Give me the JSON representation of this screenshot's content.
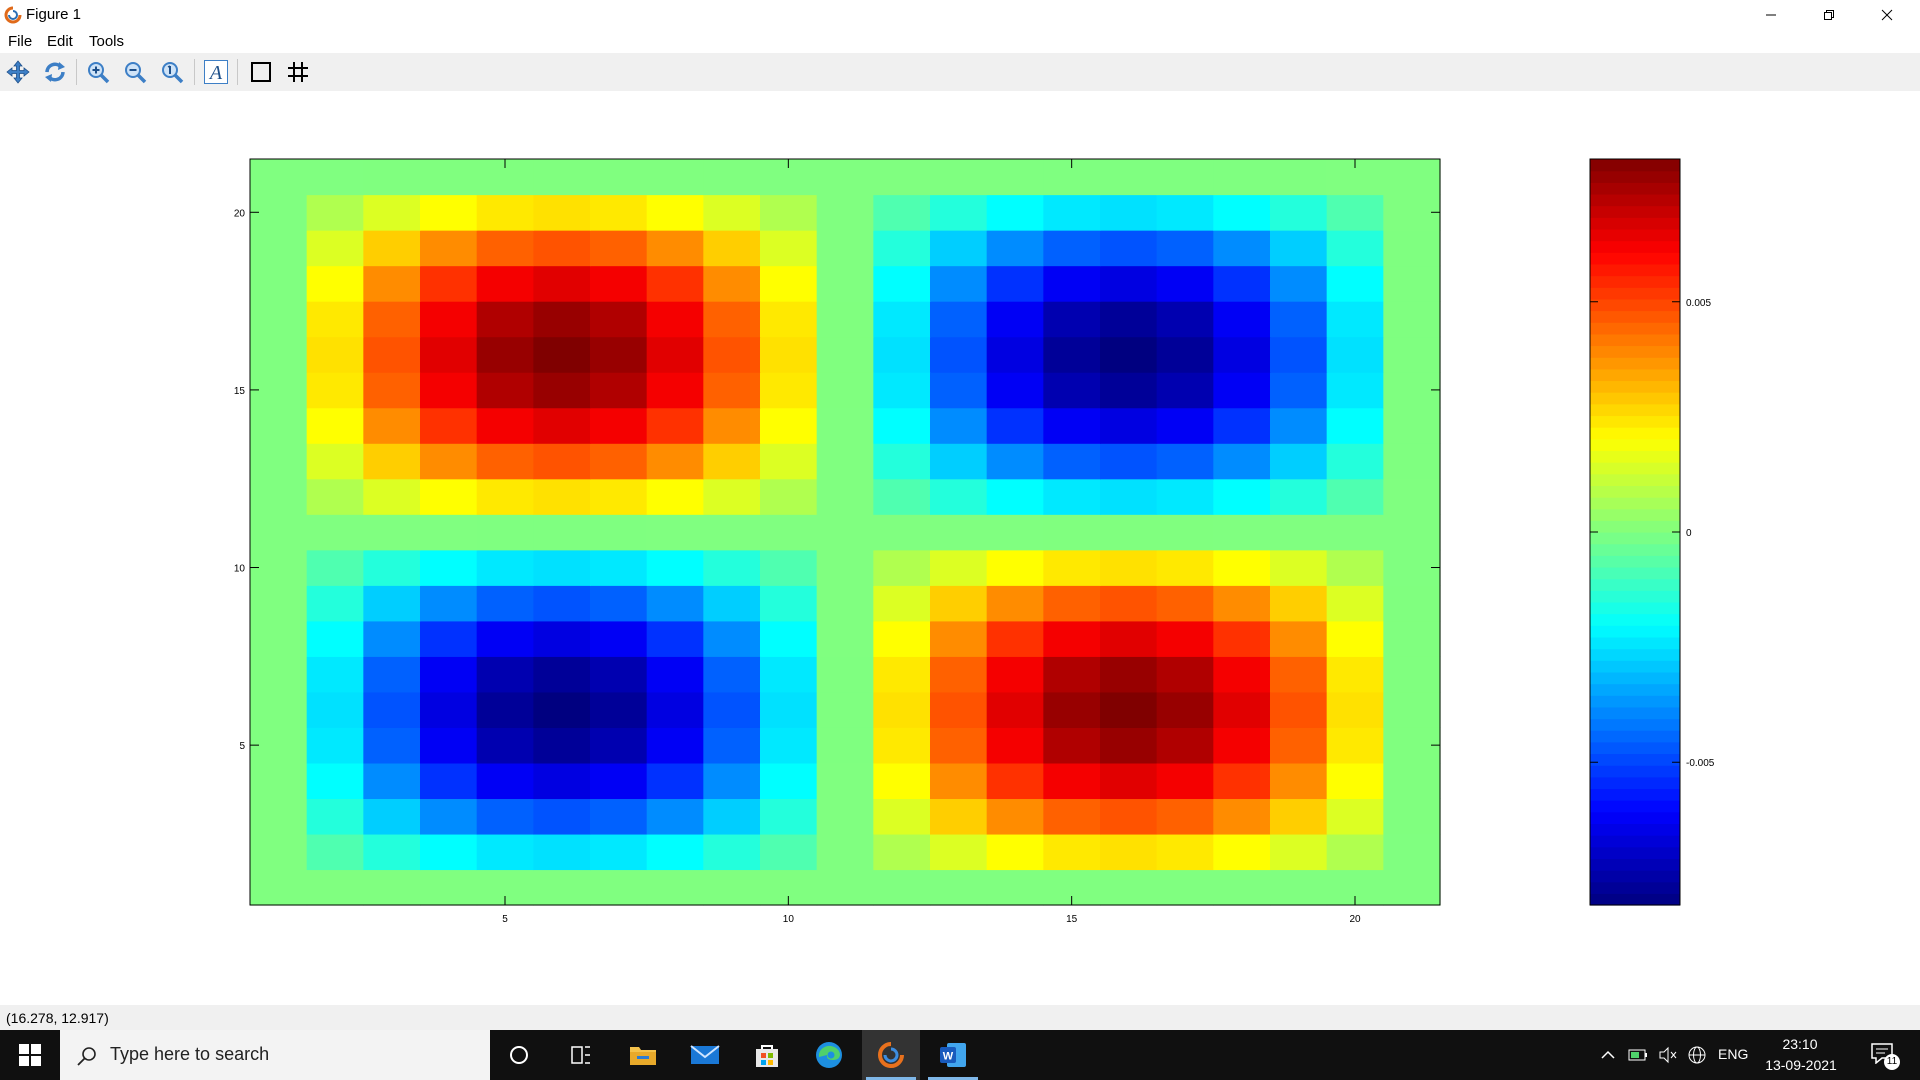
{
  "window": {
    "title": "Figure 1"
  },
  "menu": {
    "items": [
      "File",
      "Edit",
      "Tools"
    ]
  },
  "toolbar": {
    "buttons": [
      "pan-icon",
      "rotate-icon",
      "zoom-in-icon",
      "zoom-out-icon",
      "zoom-reset-icon",
      "text-insert-icon",
      "box-toggle-icon",
      "grid-toggle-icon"
    ],
    "text_glyph": "A"
  },
  "chart_data": {
    "type": "heatmap",
    "title": "",
    "xlabel": "",
    "ylabel": "",
    "x_range": [
      0.5,
      21.5
    ],
    "y_range": [
      0.5,
      21.5
    ],
    "x_ticks": [
      "5",
      "10",
      "15",
      "20"
    ],
    "y_ticks": [
      "5",
      "10",
      "15",
      "20"
    ],
    "colorbar": {
      "colormap": "jet",
      "range": [
        -0.0081,
        0.0081
      ],
      "ticks": [
        "-0.005",
        "0",
        "0.005"
      ]
    },
    "z_formula_note_free": true,
    "values_amplitude": 0.0081
  },
  "status": {
    "coordinates": "(16.278, 12.917)"
  },
  "taskbar": {
    "search_placeholder": "Type here to search",
    "apps": [
      "cortana-icon",
      "task-view-icon",
      "file-explorer-icon",
      "mail-icon",
      "store-icon",
      "edge-icon",
      "octave-icon",
      "word-icon"
    ],
    "language": "ENG",
    "time": "23:10",
    "date": "13-09-2021",
    "notifications": "11"
  }
}
